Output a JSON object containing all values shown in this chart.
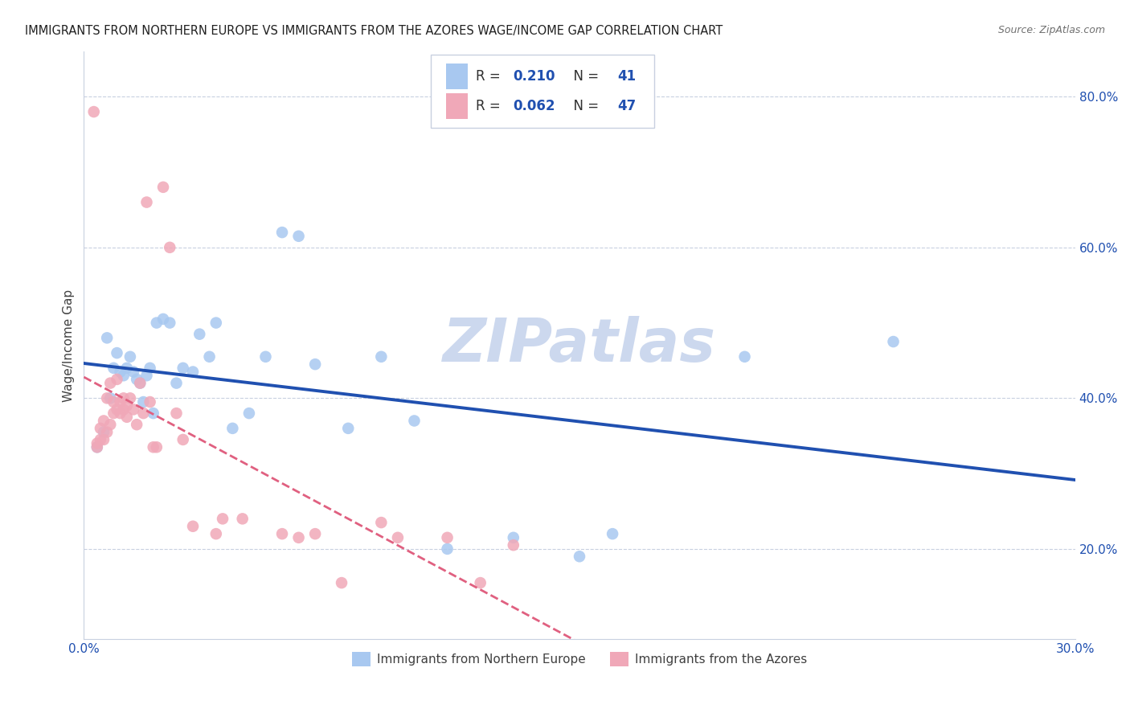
{
  "title": "IMMIGRANTS FROM NORTHERN EUROPE VS IMMIGRANTS FROM THE AZORES WAGE/INCOME GAP CORRELATION CHART",
  "source": "Source: ZipAtlas.com",
  "ylabel": "Wage/Income Gap",
  "xlim": [
    0.0,
    0.3
  ],
  "ylim": [
    0.08,
    0.86
  ],
  "xticks": [
    0.0,
    0.05,
    0.1,
    0.15,
    0.2,
    0.25,
    0.3
  ],
  "xticklabels": [
    "0.0%",
    "",
    "",
    "",
    "",
    "",
    "30.0%"
  ],
  "yticks": [
    0.2,
    0.4,
    0.6,
    0.8
  ],
  "yticklabels": [
    "20.0%",
    "40.0%",
    "60.0%",
    "80.0%"
  ],
  "blue_color": "#a8c8f0",
  "pink_color": "#f0a8b8",
  "blue_line_color": "#2050b0",
  "pink_line_color": "#e06080",
  "watermark": "ZIPatlas",
  "watermark_color": "#ccd8ee",
  "legend_R1": "0.210",
  "legend_N1": "41",
  "legend_R2": "0.062",
  "legend_N2": "47",
  "label1": "Immigrants from Northern Europe",
  "label2": "Immigrants from the Azores",
  "blue_x": [
    0.004,
    0.006,
    0.007,
    0.008,
    0.009,
    0.01,
    0.011,
    0.012,
    0.013,
    0.014,
    0.015,
    0.016,
    0.017,
    0.018,
    0.019,
    0.02,
    0.021,
    0.022,
    0.024,
    0.026,
    0.028,
    0.03,
    0.033,
    0.035,
    0.038,
    0.04,
    0.045,
    0.05,
    0.055,
    0.06,
    0.065,
    0.07,
    0.08,
    0.09,
    0.1,
    0.11,
    0.13,
    0.15,
    0.16,
    0.2,
    0.245
  ],
  "blue_y": [
    0.335,
    0.355,
    0.48,
    0.4,
    0.44,
    0.46,
    0.435,
    0.43,
    0.44,
    0.455,
    0.435,
    0.425,
    0.42,
    0.395,
    0.43,
    0.44,
    0.38,
    0.5,
    0.505,
    0.5,
    0.42,
    0.44,
    0.435,
    0.485,
    0.455,
    0.5,
    0.36,
    0.38,
    0.455,
    0.62,
    0.615,
    0.445,
    0.36,
    0.455,
    0.37,
    0.2,
    0.215,
    0.19,
    0.22,
    0.455,
    0.475
  ],
  "pink_x": [
    0.003,
    0.004,
    0.004,
    0.005,
    0.005,
    0.006,
    0.006,
    0.007,
    0.007,
    0.008,
    0.008,
    0.009,
    0.009,
    0.01,
    0.01,
    0.011,
    0.011,
    0.012,
    0.012,
    0.013,
    0.013,
    0.014,
    0.015,
    0.016,
    0.017,
    0.018,
    0.019,
    0.02,
    0.021,
    0.022,
    0.024,
    0.026,
    0.028,
    0.03,
    0.033,
    0.04,
    0.042,
    0.048,
    0.06,
    0.065,
    0.07,
    0.078,
    0.09,
    0.095,
    0.11,
    0.12,
    0.13
  ],
  "pink_y": [
    0.78,
    0.335,
    0.34,
    0.345,
    0.36,
    0.345,
    0.37,
    0.355,
    0.4,
    0.365,
    0.42,
    0.38,
    0.395,
    0.425,
    0.385,
    0.38,
    0.395,
    0.385,
    0.4,
    0.375,
    0.39,
    0.4,
    0.385,
    0.365,
    0.42,
    0.38,
    0.66,
    0.395,
    0.335,
    0.335,
    0.68,
    0.6,
    0.38,
    0.345,
    0.23,
    0.22,
    0.24,
    0.24,
    0.22,
    0.215,
    0.22,
    0.155,
    0.235,
    0.215,
    0.215,
    0.155,
    0.205
  ]
}
